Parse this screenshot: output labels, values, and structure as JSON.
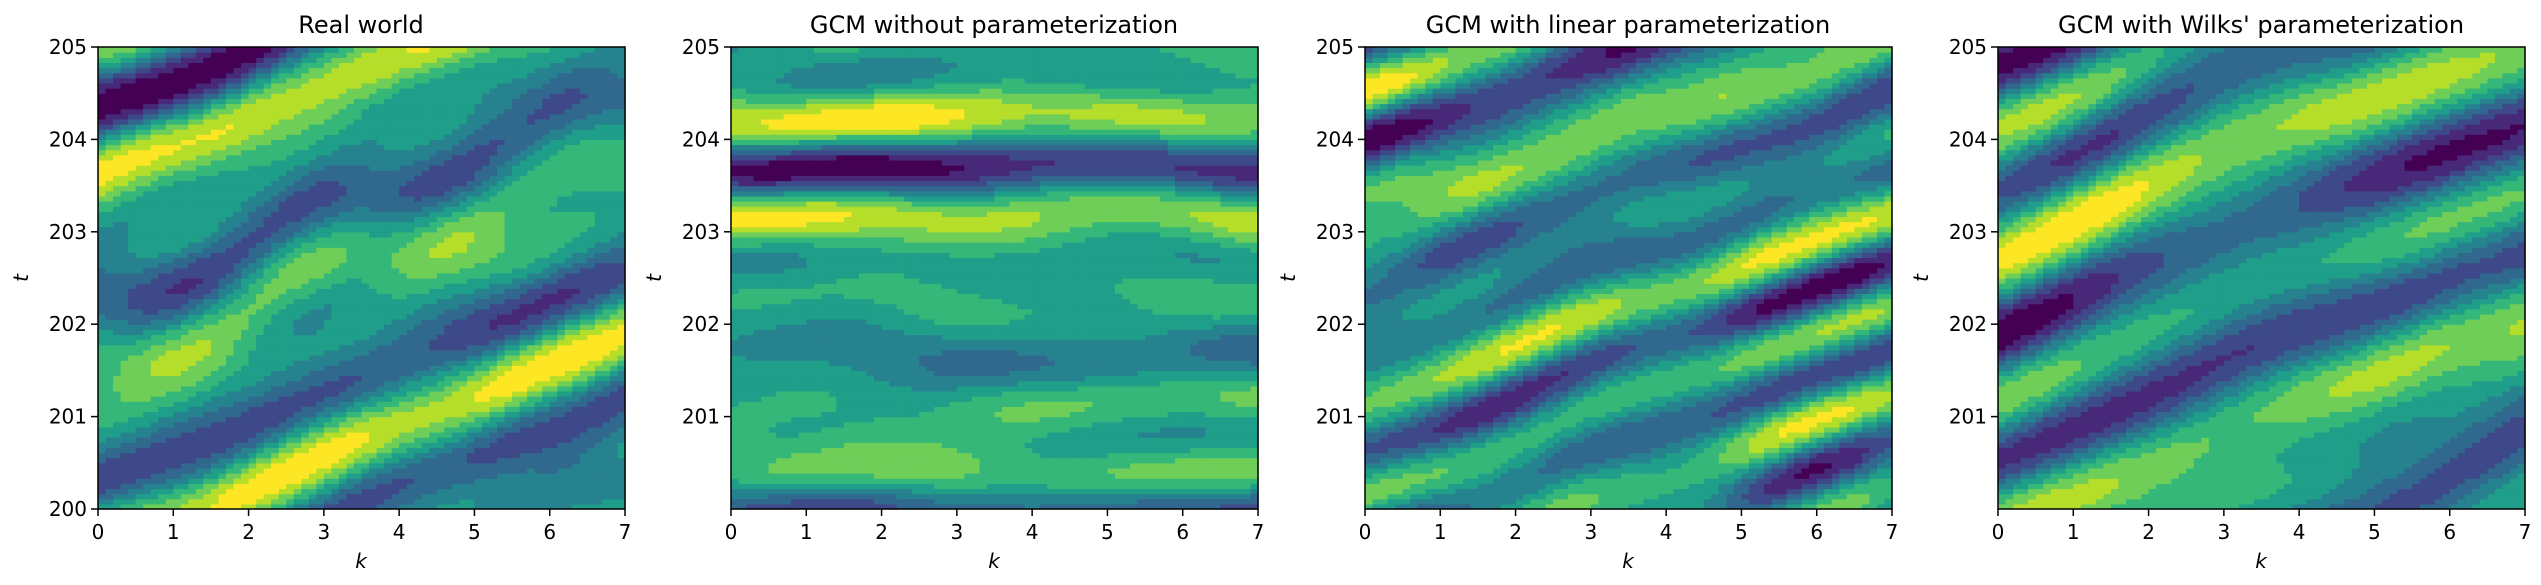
{
  "chart_data": [
    {
      "type": "heatmap",
      "title": "Real world",
      "xlabel": "k",
      "ylabel": "t",
      "xlim": [
        0,
        7
      ],
      "ylim": [
        200,
        205
      ],
      "x_ticks": [
        "0",
        "1",
        "2",
        "3",
        "4",
        "5",
        "6",
        "7"
      ],
      "y_ticks": [
        "200",
        "201",
        "202",
        "203",
        "204",
        "205"
      ],
      "colormap": "viridis",
      "pattern": "diagonal bands drifting toward larger t with increasing k, moderate amplitude",
      "seed": 1
    },
    {
      "type": "heatmap",
      "title": "GCM without parameterization",
      "xlabel": "k",
      "ylabel": "t",
      "xlim": [
        0,
        7
      ],
      "ylim": [
        200,
        205
      ],
      "x_ticks": [
        "0",
        "1",
        "2",
        "3",
        "4",
        "5",
        "6",
        "7"
      ],
      "y_ticks": [
        "201",
        "202",
        "203",
        "204",
        "205"
      ],
      "colormap": "viridis",
      "pattern": "mostly horizontal streaks with strong extremes",
      "seed": 2
    },
    {
      "type": "heatmap",
      "title": "GCM with linear parameterization",
      "xlabel": "k",
      "ylabel": "t",
      "xlim": [
        0,
        7
      ],
      "ylim": [
        200,
        205
      ],
      "x_ticks": [
        "0",
        "1",
        "2",
        "3",
        "4",
        "5",
        "6",
        "7"
      ],
      "y_ticks": [
        "201",
        "202",
        "203",
        "204",
        "205"
      ],
      "colormap": "viridis",
      "pattern": "diagonal bands, finer scale",
      "seed": 3
    },
    {
      "type": "heatmap",
      "title": "GCM with Wilks' parameterization",
      "xlabel": "k",
      "ylabel": "t",
      "xlim": [
        0,
        7
      ],
      "ylim": [
        200,
        205
      ],
      "x_ticks": [
        "0",
        "1",
        "2",
        "3",
        "4",
        "5",
        "6",
        "7"
      ],
      "y_ticks": [
        "201",
        "202",
        "203",
        "204",
        "205"
      ],
      "colormap": "viridis",
      "pattern": "diagonal bands similar to real world",
      "seed": 4
    }
  ]
}
